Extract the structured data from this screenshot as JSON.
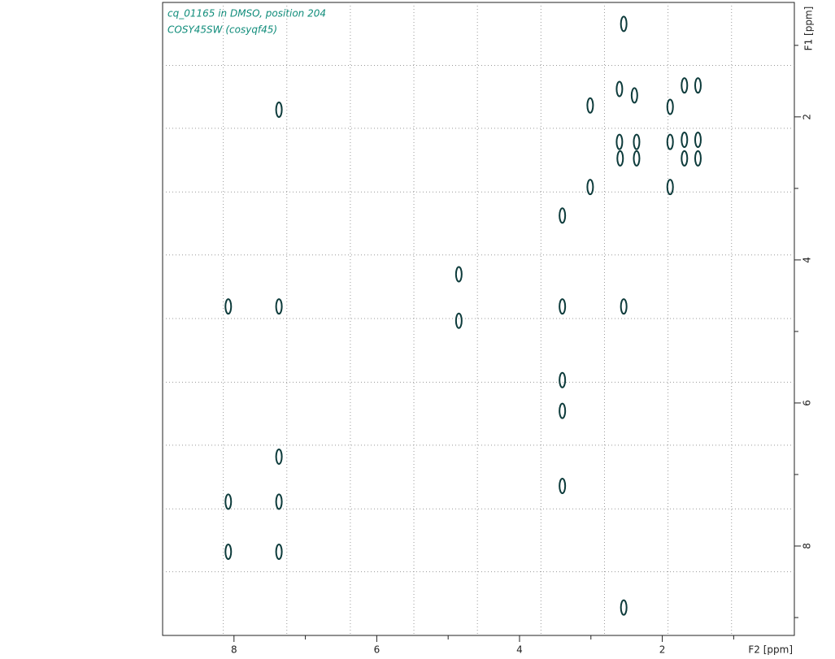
{
  "chart_data": {
    "type": "scatter",
    "title": "cq_01165 in DMSO, position 204",
    "subtitle": "COSY45SW (cosyqf45)",
    "x_label": "F2 [ppm]",
    "y_label": "F1 [ppm]",
    "color": "#0d3b3b",
    "title_color": "#0f8c7a",
    "xlim": [
      9.0,
      0.15
    ],
    "ylim": [
      0.4,
      9.25
    ],
    "xticks": [
      8,
      6,
      4,
      2
    ],
    "yticks": [
      2,
      4,
      6,
      8
    ],
    "xminor": [
      7,
      5,
      3,
      1
    ],
    "yminor": [
      1,
      3,
      5,
      7,
      9
    ],
    "xgrid": [
      8.15,
      7.26,
      6.37,
      5.48,
      4.59,
      3.7,
      2.81,
      1.92,
      1.03
    ],
    "ygrid": [
      1.28,
      2.16,
      3.05,
      3.93,
      4.82,
      5.71,
      6.59,
      7.48,
      8.36
    ],
    "grid": true,
    "x": [
      2.54,
      7.37,
      2.6,
      2.39,
      3.01,
      1.89,
      1.69,
      1.5,
      2.6,
      2.59,
      2.36,
      2.36,
      1.89,
      1.69,
      1.5,
      1.69,
      1.5,
      3.01,
      1.89,
      3.4,
      4.85,
      4.85,
      8.08,
      7.37,
      3.4,
      2.54,
      3.4,
      3.4,
      7.37,
      3.4,
      8.08,
      7.37,
      8.08,
      7.37,
      2.54
    ],
    "y": [
      0.7,
      1.9,
      1.61,
      1.7,
      1.84,
      1.86,
      1.56,
      1.56,
      2.35,
      2.58,
      2.35,
      2.58,
      2.35,
      2.32,
      2.32,
      2.58,
      2.58,
      2.98,
      2.98,
      3.38,
      4.2,
      4.85,
      4.65,
      4.65,
      4.65,
      4.65,
      5.68,
      6.11,
      6.75,
      7.16,
      7.38,
      7.38,
      8.08,
      8.08,
      8.86
    ]
  }
}
